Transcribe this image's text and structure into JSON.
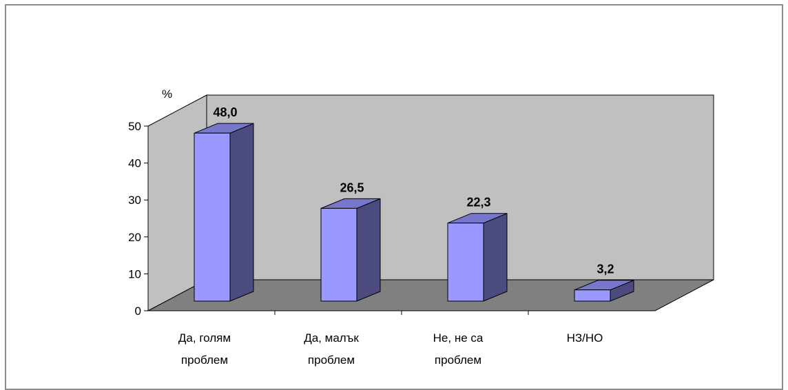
{
  "chart_data": {
    "type": "bar",
    "ylabel": "%",
    "ylim": [
      0,
      50
    ],
    "yticks": [
      "0",
      "10",
      "20",
      "30",
      "40",
      "50"
    ],
    "categories": [
      [
        "Да, голям",
        "проблем"
      ],
      [
        "Да, малък",
        "проблем"
      ],
      [
        "Не, не са",
        "проблем"
      ],
      [
        "НЗ/НО"
      ]
    ],
    "values": [
      48.0,
      26.5,
      22.3,
      3.2
    ],
    "value_labels": [
      "48,0",
      "26,5",
      "22,3",
      "3,2"
    ],
    "colors": {
      "bar_front": "#9999ff",
      "bar_side": "#4b4b80",
      "bar_top": "#7777cc",
      "wall": "#c0c0c0",
      "floor": "#808080"
    }
  }
}
